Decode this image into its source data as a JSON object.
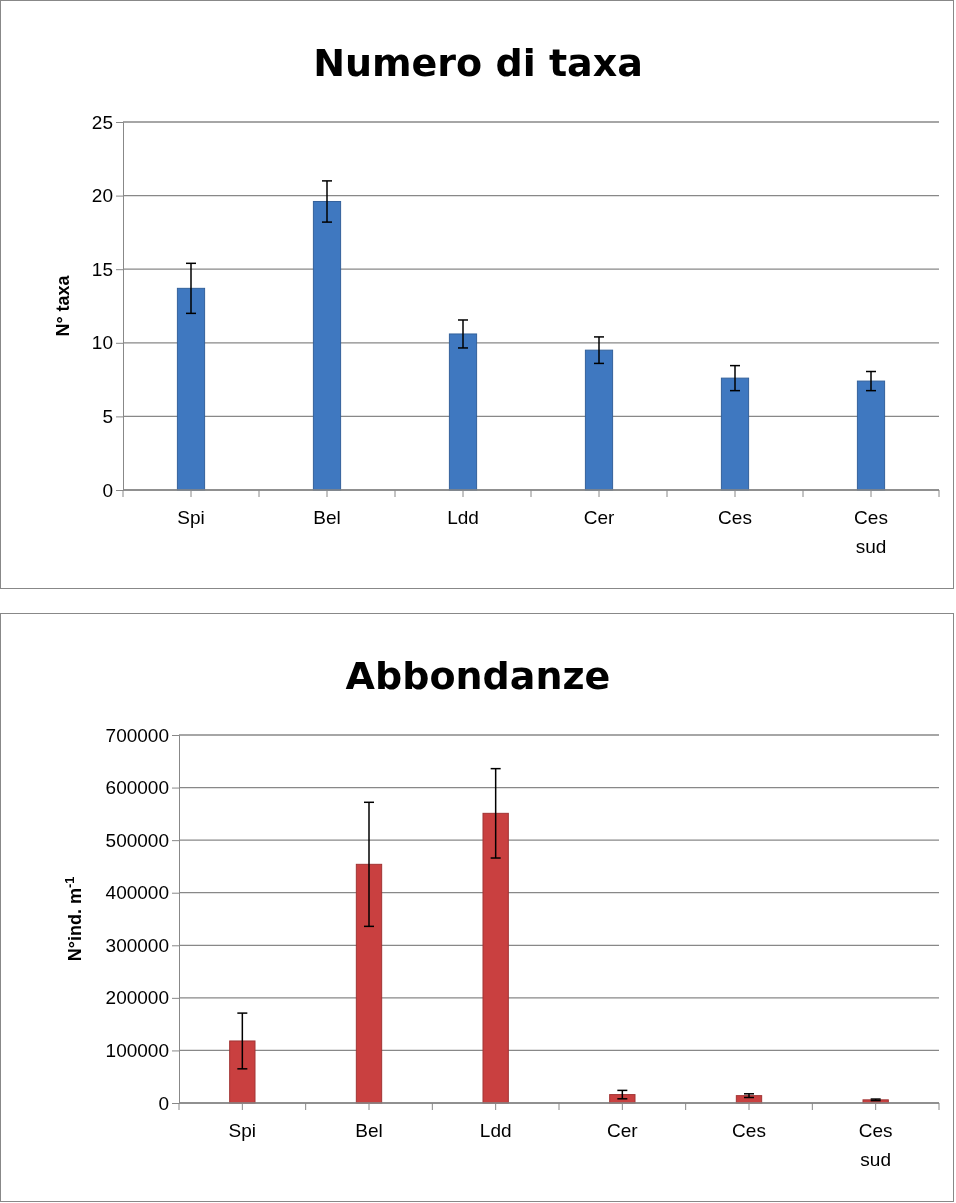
{
  "chart_data": [
    {
      "type": "bar",
      "title": "Numero di taxa",
      "ylabel": "N° taxa",
      "categories": [
        "Spi",
        "Bel",
        "Ldd",
        "Cer",
        "Ces",
        "Ces sud"
      ],
      "values": [
        13.7,
        19.6,
        10.6,
        9.5,
        7.6,
        7.4
      ],
      "errors": [
        1.7,
        1.4,
        0.95,
        0.9,
        0.85,
        0.65
      ],
      "color": "#3f78c0",
      "ylim": [
        0,
        25
      ],
      "yticks": [
        0,
        5,
        10,
        15,
        20,
        25
      ],
      "grid": "y"
    },
    {
      "type": "bar",
      "title": "Abbondanze",
      "ylabel": "N°ind. m$^{-1}$",
      "categories": [
        "Spi",
        "Bel",
        "Ldd",
        "Cer",
        "Ces",
        "Ces sud"
      ],
      "values": [
        118000,
        454000,
        551000,
        16000,
        14000,
        6000
      ],
      "errors": [
        53000,
        118000,
        85000,
        8000,
        3500,
        1500
      ],
      "color": "#c94040",
      "ylim": [
        0,
        700000
      ],
      "yticks": [
        0,
        100000,
        200000,
        300000,
        400000,
        500000,
        600000,
        700000
      ],
      "grid": "y"
    }
  ]
}
